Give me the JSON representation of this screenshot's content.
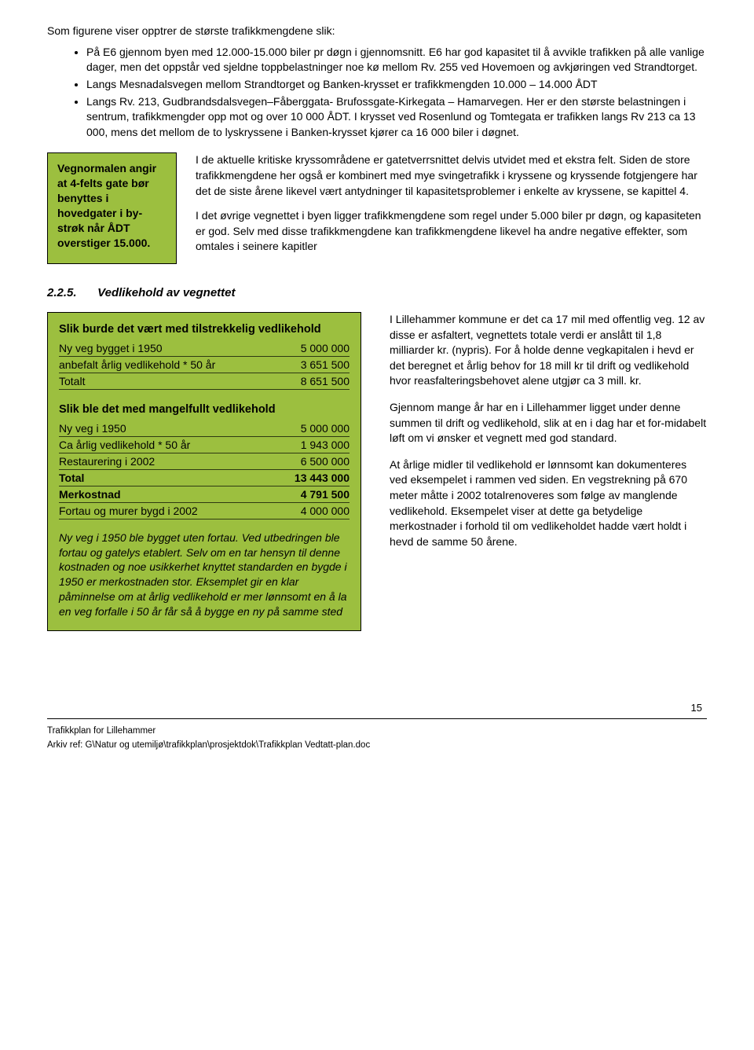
{
  "intro": "Som figurene viser opptrer de største trafikkmengdene slik:",
  "bullets": [
    "På E6 gjennom byen med 12.000-15.000 biler pr døgn i gjennomsnitt. E6 har god kapasitet til å avvikle trafikken på alle vanlige dager, men det oppstår ved sjeldne toppbelastninger noe kø mellom Rv. 255 ved Hovemoen og avkjøringen ved Strandtorget.",
    "Langs Mesnadalsvegen mellom Strandtorget og Banken-krysset er trafikkmengden 10.000 – 14.000 ÅDT",
    "Langs Rv. 213, Gudbrandsdalsvegen–Fåberggata- Brufossgate-Kirkegata – Hamarvegen. Her er den største belastningen i sentrum, trafikkmengder opp mot og over 10 000 ÅDT. I krysset ved Rosenlund og Tomtegata er trafikken langs Rv 213 ca 13 000, mens det mellom de to lyskryssene i Banken-krysset kjører ca 16 000 biler i døgnet."
  ],
  "callout": "Vegnormalen angir at 4-felts gate bør benyttes i hovedgater i by-strøk når ÅDT overstiger 15.000.",
  "rightParas": [
    "I de aktuelle kritiske kryssområdene er gatetverrsnittet delvis utvidet med et ekstra felt. Siden de store trafikkmengdene her også er kombinert med mye svingetrafikk i kryssene og kryssende fotgjengere har det de siste årene likevel vært antydninger til kapasitetsproblemer i enkelte av kryssene, se kapittel 4.",
    "I det øvrige vegnettet i byen ligger trafikkmengdene som regel under 5.000 biler pr døgn, og kapasiteten er god. Selv med disse trafikkmengdene kan trafikkmengdene likevel ha andre negative effekter, som omtales i seinere kapitler"
  ],
  "section": {
    "num": "2.2.5.",
    "title": "Vedlikehold av vegnettet"
  },
  "greenPanel": {
    "title1": "Slik burde det vært med tilstrekkelig vedlikehold",
    "rows1": [
      {
        "label": "Ny veg  bygget i 1950",
        "value": "5 000 000"
      },
      {
        "label": "anbefalt årlig vedlikehold * 50 år",
        "value": "3 651 500"
      },
      {
        "label": " Totalt",
        "value": "8 651 500"
      }
    ],
    "title2": "Slik ble det med mangelfullt vedlikehold",
    "rows2": [
      {
        "label": "Ny veg i 1950",
        "value": "5 000 000"
      },
      {
        "label": "Ca årlig vedlikehold * 50 år",
        "value": "1 943 000"
      },
      {
        "label": "Restaurering i 2002",
        "value": "6 500 000"
      },
      {
        "label": " Total",
        "value": "13 443 000",
        "bold": true
      },
      {
        "label": "Merkostnad",
        "value": "4 791 500",
        "bold": true
      },
      {
        "label": "Fortau og murer bygd i 2002",
        "value": "4 000 000"
      }
    ],
    "footnote": "Ny veg i 1950 ble bygget uten fortau. Ved utbedringen ble fortau og gatelys etablert. Selv om en tar hensyn til denne kostnaden og noe usikkerhet knyttet standarden en bygde i 1950 er merkostnaden stor. Eksemplet gir en klar påminnelse om at årlig vedlikehold er mer lønnsomt en å la en veg forfalle i 50 år får så å bygge en ny på samme sted"
  },
  "rightBody": [
    "I Lillehammer kommune er det ca 17 mil med offentlig veg. 12 av disse er asfaltert, vegnettets totale verdi er anslått til 1,8 milliarder kr. (nypris). For å holde denne vegkapitalen i hevd er det beregnet et årlig behov for 18 mill kr til drift og vedlikehold hvor reasfalteringsbehovet alene utgjør ca 3 mill. kr.",
    "Gjennom mange år har en i Lillehammer ligget under denne summen til drift og vedlikehold, slik at en i dag har et for-midabelt løft om vi ønsker et vegnett med god standard.",
    "At årlige midler til vedlikehold er lønnsomt kan dokumenteres ved eksempelet i rammen ved siden.  En vegstrekning på 670 meter måtte i 2002 totalrenoveres som følge av manglende vedlikehold. Eksempelet viser at dette ga betydelige merkostnader i forhold til om vedlikeholdet hadde vært holdt i hevd de samme 50 årene."
  ],
  "pageNum": "15",
  "footer1": "Trafikkplan for Lillehammer",
  "footer2": "Arkiv ref: G\\Natur og utemiljø\\trafikkplan\\prosjektdok\\Trafikkplan Vedtatt-plan.doc",
  "colors": {
    "green": "#9cbf3f",
    "text": "#000000",
    "bg": "#ffffff"
  }
}
